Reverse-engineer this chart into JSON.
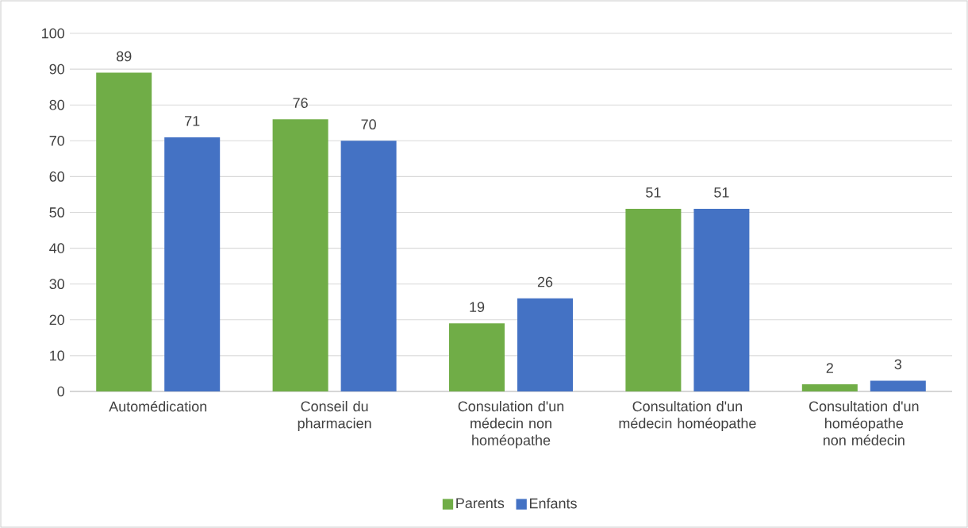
{
  "chart_data": {
    "type": "bar",
    "categories": [
      "Automédication",
      "Conseil du pharmacien",
      "Consulation d'un médecin non homéopathe",
      "Consultation d'un médecin homéopathe",
      "Consultation d'un homéopathe non médecin"
    ],
    "series": [
      {
        "name": "Parents",
        "color": "#70ad47",
        "values": [
          89,
          76,
          19,
          51,
          2
        ]
      },
      {
        "name": "Enfants",
        "color": "#4472c4",
        "values": [
          71,
          70,
          26,
          51,
          3
        ]
      }
    ],
    "ylim": [
      0,
      100
    ],
    "yticks": [
      0,
      10,
      20,
      30,
      40,
      50,
      60,
      70,
      80,
      90,
      100
    ],
    "grid": "y",
    "legend": "bottom",
    "data_labels": true
  }
}
